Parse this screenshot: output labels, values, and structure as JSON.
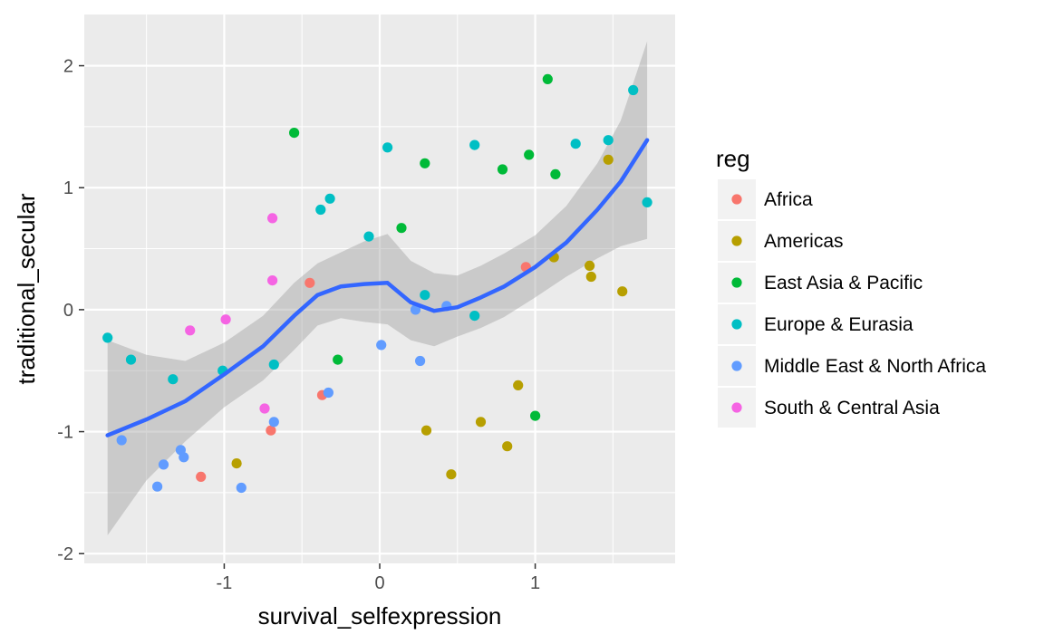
{
  "chart_data": {
    "type": "scatter",
    "xlabel": "survival_selfexpression",
    "ylabel": "traditional_secular",
    "xlim": [
      -1.9,
      1.9
    ],
    "ylim": [
      -2.08,
      2.42
    ],
    "x_ticks": [
      -1,
      0,
      1
    ],
    "x_tick_labels": [
      "-1",
      "0",
      "1"
    ],
    "y_ticks": [
      -2,
      -1,
      0,
      1,
      2
    ],
    "y_tick_labels": [
      "-2",
      "-1",
      "0",
      "1",
      "2"
    ],
    "grid": true,
    "panel_background": "#ebebeb",
    "legend": {
      "title": "reg",
      "position": "right",
      "entries": [
        {
          "label": "Africa",
          "color": "#F8766D"
        },
        {
          "label": "Americas",
          "color": "#B79F00"
        },
        {
          "label": "East Asia & Pacific",
          "color": "#00BA38"
        },
        {
          "label": "Europe & Eurasia",
          "color": "#00BFC4"
        },
        {
          "label": "Middle East & North Africa",
          "color": "#619CFF"
        },
        {
          "label": "South & Central Asia",
          "color": "#F564E3"
        }
      ]
    },
    "series": [
      {
        "name": "Africa",
        "color": "#F8766D",
        "points": [
          [
            -0.45,
            0.22
          ],
          [
            -0.37,
            -0.7
          ],
          [
            -0.7,
            -0.99
          ],
          [
            -1.15,
            -1.37
          ],
          [
            0.94,
            0.35
          ]
        ]
      },
      {
        "name": "Americas",
        "color": "#B79F00",
        "points": [
          [
            -0.92,
            -1.26
          ],
          [
            0.3,
            -0.99
          ],
          [
            0.46,
            -1.35
          ],
          [
            0.65,
            -0.92
          ],
          [
            0.82,
            -1.12
          ],
          [
            0.89,
            -0.62
          ],
          [
            1.12,
            0.43
          ],
          [
            1.35,
            0.36
          ],
          [
            1.36,
            0.27
          ],
          [
            1.56,
            0.15
          ],
          [
            1.47,
            1.23
          ]
        ]
      },
      {
        "name": "East Asia & Pacific",
        "color": "#00BA38",
        "points": [
          [
            -0.55,
            1.45
          ],
          [
            -0.27,
            -0.41
          ],
          [
            0.14,
            0.67
          ],
          [
            0.29,
            1.2
          ],
          [
            0.79,
            1.15
          ],
          [
            0.96,
            1.27
          ],
          [
            1.08,
            1.89
          ],
          [
            1.13,
            1.11
          ],
          [
            1.0,
            -0.87
          ]
        ]
      },
      {
        "name": "Europe & Eurasia",
        "color": "#00BFC4",
        "points": [
          [
            -1.75,
            -0.23
          ],
          [
            -1.6,
            -0.41
          ],
          [
            -1.33,
            -0.57
          ],
          [
            -1.01,
            -0.5
          ],
          [
            -0.68,
            -0.45
          ],
          [
            -0.38,
            0.82
          ],
          [
            -0.32,
            0.91
          ],
          [
            -0.07,
            0.6
          ],
          [
            0.05,
            1.33
          ],
          [
            0.29,
            0.12
          ],
          [
            0.61,
            1.35
          ],
          [
            0.61,
            -0.05
          ],
          [
            1.26,
            1.36
          ],
          [
            1.47,
            1.39
          ],
          [
            1.63,
            1.8
          ],
          [
            1.72,
            0.88
          ]
        ]
      },
      {
        "name": "Middle East & North Africa",
        "color": "#619CFF",
        "points": [
          [
            -1.66,
            -1.07
          ],
          [
            -1.43,
            -1.45
          ],
          [
            -1.39,
            -1.27
          ],
          [
            -1.28,
            -1.15
          ],
          [
            -1.26,
            -1.21
          ],
          [
            -0.89,
            -1.46
          ],
          [
            -0.68,
            -0.92
          ],
          [
            -0.33,
            -0.68
          ],
          [
            0.01,
            -0.29
          ],
          [
            0.23,
            0.0
          ],
          [
            0.26,
            -0.42
          ],
          [
            0.43,
            0.03
          ]
        ]
      },
      {
        "name": "South & Central Asia",
        "color": "#F564E3",
        "points": [
          [
            -1.22,
            -0.17
          ],
          [
            -0.99,
            -0.08
          ],
          [
            -0.74,
            -0.81
          ],
          [
            -0.69,
            0.75
          ],
          [
            -0.69,
            0.24
          ]
        ]
      }
    ],
    "smooth": {
      "color": "#3366FF",
      "ribbon_color": "#999999",
      "x": [
        -1.75,
        -1.5,
        -1.25,
        -1.0,
        -0.75,
        -0.55,
        -0.4,
        -0.25,
        -0.1,
        0.05,
        0.2,
        0.35,
        0.5,
        0.65,
        0.8,
        1.0,
        1.2,
        1.4,
        1.55,
        1.72
      ],
      "y": [
        -1.03,
        -0.9,
        -0.75,
        -0.53,
        -0.3,
        -0.05,
        0.12,
        0.19,
        0.21,
        0.22,
        0.06,
        -0.01,
        0.02,
        0.1,
        0.19,
        0.35,
        0.55,
        0.82,
        1.05,
        1.39
      ],
      "lower": [
        -1.85,
        -1.4,
        -1.08,
        -0.8,
        -0.58,
        -0.33,
        -0.13,
        -0.07,
        -0.1,
        -0.12,
        -0.25,
        -0.3,
        -0.22,
        -0.15,
        -0.06,
        0.1,
        0.27,
        0.42,
        0.52,
        0.58
      ],
      "upper": [
        -0.25,
        -0.37,
        -0.42,
        -0.27,
        -0.05,
        0.22,
        0.38,
        0.47,
        0.56,
        0.62,
        0.4,
        0.3,
        0.28,
        0.36,
        0.46,
        0.61,
        0.85,
        1.2,
        1.55,
        2.2
      ]
    }
  }
}
